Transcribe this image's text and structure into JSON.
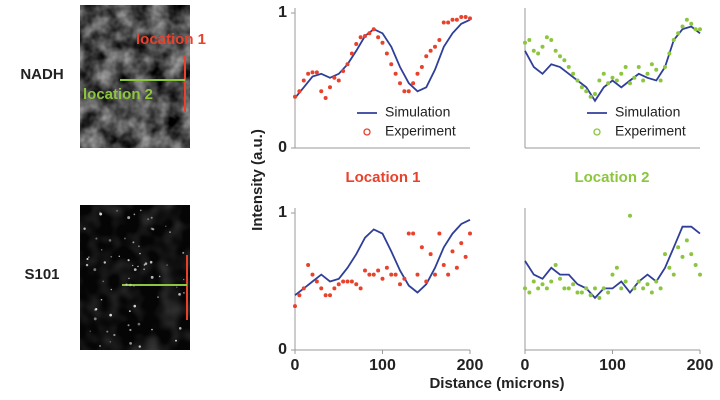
{
  "figure": {
    "ylabel": "Intensity (a.u.)",
    "xlabel": "Distance (microns)",
    "column_titles": [
      {
        "text": "Location 1",
        "color": "#e8412c"
      },
      {
        "text": "Location 2",
        "color": "#8cc63e"
      }
    ]
  },
  "images": [
    {
      "label": "NADH",
      "annotations": [
        "location 1",
        "location 2"
      ]
    },
    {
      "label": "S101"
    }
  ],
  "chart_data": [
    {
      "type": "line",
      "xlim": [
        0,
        200
      ],
      "ylim": [
        0,
        1
      ],
      "yticks": [
        0,
        1
      ],
      "legend": "lower right",
      "series": [
        {
          "name": "Simulation",
          "color": "#2f3f99",
          "style": "line",
          "x": [
            0,
            10,
            20,
            30,
            40,
            50,
            60,
            70,
            80,
            90,
            100,
            110,
            120,
            130,
            140,
            150,
            160,
            170,
            180,
            190,
            200
          ],
          "values": [
            0.37,
            0.45,
            0.53,
            0.55,
            0.52,
            0.55,
            0.62,
            0.72,
            0.83,
            0.88,
            0.85,
            0.75,
            0.6,
            0.48,
            0.42,
            0.45,
            0.58,
            0.75,
            0.85,
            0.92,
            0.95
          ]
        },
        {
          "name": "Experiment",
          "color": "#e8412c",
          "style": "markers",
          "x": [
            0,
            5,
            10,
            15,
            20,
            25,
            30,
            35,
            40,
            45,
            50,
            55,
            60,
            65,
            70,
            75,
            80,
            85,
            90,
            95,
            100,
            105,
            110,
            115,
            120,
            125,
            130,
            135,
            140,
            145,
            150,
            155,
            160,
            165,
            170,
            175,
            180,
            185,
            190,
            195,
            200
          ],
          "values": [
            0.38,
            0.42,
            0.5,
            0.55,
            0.56,
            0.56,
            0.42,
            0.37,
            0.45,
            0.52,
            0.5,
            0.57,
            0.62,
            0.7,
            0.77,
            0.82,
            0.83,
            0.85,
            0.88,
            0.82,
            0.78,
            0.7,
            0.62,
            0.55,
            0.48,
            0.42,
            0.42,
            0.48,
            0.55,
            0.6,
            0.68,
            0.72,
            0.75,
            0.8,
            0.93,
            0.93,
            0.95,
            0.95,
            0.97,
            0.97,
            0.96
          ]
        }
      ]
    },
    {
      "type": "line",
      "xlim": [
        0,
        200
      ],
      "ylim": [
        0,
        1
      ],
      "legend": "lower right",
      "series": [
        {
          "name": "Simulation",
          "color": "#2f3f99",
          "style": "line",
          "x": [
            0,
            10,
            20,
            30,
            40,
            50,
            60,
            70,
            80,
            90,
            100,
            110,
            120,
            130,
            140,
            150,
            160,
            170,
            180,
            190,
            200
          ],
          "values": [
            0.72,
            0.6,
            0.55,
            0.62,
            0.6,
            0.55,
            0.5,
            0.45,
            0.35,
            0.45,
            0.5,
            0.45,
            0.5,
            0.55,
            0.52,
            0.5,
            0.6,
            0.8,
            0.88,
            0.9,
            0.85
          ]
        },
        {
          "name": "Experiment",
          "color": "#8cc63e",
          "style": "markers",
          "x": [
            0,
            5,
            10,
            15,
            20,
            25,
            30,
            35,
            40,
            45,
            50,
            55,
            60,
            65,
            70,
            75,
            80,
            85,
            90,
            95,
            100,
            105,
            110,
            115,
            120,
            125,
            130,
            135,
            140,
            145,
            150,
            155,
            160,
            165,
            170,
            175,
            180,
            185,
            190,
            195,
            200
          ],
          "values": [
            0.78,
            0.8,
            0.72,
            0.7,
            0.75,
            0.82,
            0.8,
            0.72,
            0.68,
            0.65,
            0.6,
            0.55,
            0.5,
            0.45,
            0.42,
            0.38,
            0.4,
            0.5,
            0.55,
            0.48,
            0.52,
            0.5,
            0.55,
            0.6,
            0.48,
            0.52,
            0.6,
            0.5,
            0.55,
            0.62,
            0.58,
            0.5,
            0.6,
            0.7,
            0.8,
            0.85,
            0.9,
            0.95,
            0.92,
            0.88,
            0.88
          ]
        }
      ]
    },
    {
      "type": "line",
      "xlim": [
        0,
        200
      ],
      "ylim": [
        0,
        1
      ],
      "yticks": [
        0,
        1
      ],
      "xticks": [
        0,
        100,
        200
      ],
      "series": [
        {
          "color": "#2f3f99",
          "style": "line",
          "x": [
            0,
            10,
            20,
            30,
            40,
            50,
            60,
            70,
            80,
            90,
            100,
            110,
            120,
            130,
            140,
            150,
            160,
            170,
            180,
            190,
            200
          ],
          "values": [
            0.4,
            0.45,
            0.5,
            0.55,
            0.5,
            0.52,
            0.6,
            0.7,
            0.82,
            0.88,
            0.85,
            0.72,
            0.58,
            0.47,
            0.42,
            0.48,
            0.6,
            0.75,
            0.85,
            0.92,
            0.95
          ]
        },
        {
          "color": "#e8412c",
          "style": "markers",
          "x": [
            0,
            5,
            10,
            15,
            20,
            25,
            30,
            35,
            40,
            45,
            50,
            55,
            60,
            65,
            70,
            75,
            80,
            85,
            90,
            95,
            100,
            105,
            110,
            115,
            120,
            125,
            130,
            135,
            140,
            145,
            150,
            155,
            160,
            165,
            170,
            175,
            180,
            185,
            190,
            195,
            200
          ],
          "values": [
            0.32,
            0.4,
            0.45,
            0.62,
            0.55,
            0.5,
            0.45,
            0.4,
            0.4,
            0.45,
            0.48,
            0.5,
            0.5,
            0.5,
            0.48,
            0.45,
            0.58,
            0.55,
            0.55,
            0.58,
            0.52,
            0.6,
            0.55,
            0.55,
            0.48,
            0.52,
            0.85,
            0.85,
            0.55,
            0.75,
            0.5,
            0.7,
            0.55,
            0.85,
            0.62,
            0.55,
            0.72,
            0.6,
            0.78,
            0.68,
            0.85
          ]
        }
      ]
    },
    {
      "type": "line",
      "xlim": [
        0,
        200
      ],
      "ylim": [
        0,
        1
      ],
      "xticks": [
        0,
        100,
        200
      ],
      "series": [
        {
          "color": "#2f3f99",
          "style": "line",
          "x": [
            0,
            10,
            20,
            30,
            40,
            50,
            60,
            70,
            80,
            90,
            100,
            110,
            120,
            130,
            140,
            150,
            160,
            170,
            180,
            190,
            200
          ],
          "values": [
            0.65,
            0.55,
            0.52,
            0.6,
            0.55,
            0.55,
            0.48,
            0.45,
            0.38,
            0.45,
            0.45,
            0.5,
            0.42,
            0.5,
            0.55,
            0.5,
            0.6,
            0.75,
            0.9,
            0.9,
            0.85
          ]
        },
        {
          "color": "#8cc63e",
          "style": "markers",
          "x": [
            0,
            5,
            10,
            15,
            20,
            25,
            30,
            35,
            40,
            45,
            50,
            55,
            60,
            65,
            70,
            75,
            80,
            85,
            90,
            95,
            100,
            105,
            110,
            115,
            120,
            125,
            130,
            135,
            140,
            145,
            150,
            155,
            160,
            165,
            170,
            175,
            180,
            185,
            190,
            195,
            200
          ],
          "values": [
            0.45,
            0.42,
            0.5,
            0.45,
            0.48,
            0.45,
            0.5,
            0.62,
            0.52,
            0.45,
            0.45,
            0.48,
            0.42,
            0.42,
            0.45,
            0.4,
            0.45,
            0.38,
            0.45,
            0.42,
            0.55,
            0.6,
            0.45,
            0.5,
            0.98,
            0.45,
            0.5,
            0.45,
            0.48,
            0.42,
            0.5,
            0.45,
            0.7,
            0.6,
            0.55,
            0.75,
            0.68,
            0.8,
            0.7,
            0.62,
            0.55
          ]
        }
      ]
    }
  ]
}
